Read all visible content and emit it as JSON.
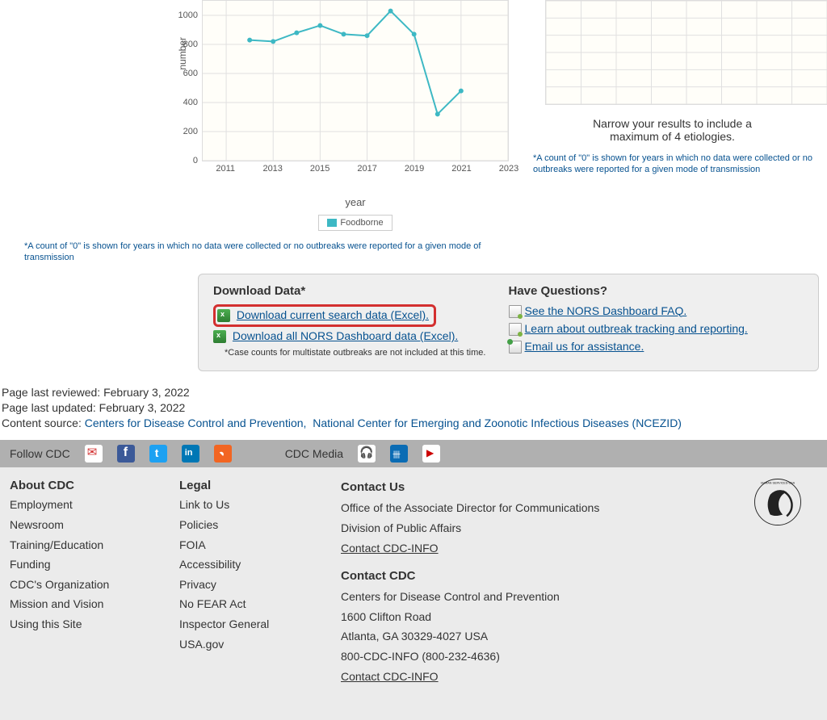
{
  "chart": {
    "y_label": "number",
    "x_label": "year",
    "y_ticks": [
      0,
      200,
      400,
      600,
      800,
      1000
    ],
    "x_ticks": [
      2011,
      2013,
      2015,
      2017,
      2019,
      2021,
      2023
    ],
    "ylim": [
      0,
      1100
    ],
    "xlim": [
      2010,
      2023
    ],
    "legend": "Foodborne",
    "line_color": "#3db8c4",
    "grid_color": "#e0e0e0",
    "background_color": "#fffef9",
    "series": {
      "years": [
        2012,
        2013,
        2014,
        2015,
        2016,
        2017,
        2018,
        2019,
        2020,
        2021
      ],
      "values": [
        830,
        820,
        880,
        930,
        870,
        860,
        1030,
        870,
        320,
        480
      ]
    },
    "footnote_left": "*A count of \"0\" is shown for years in which no data were collected or no outbreaks were reported for a given mode of transmission",
    "footnote_right": "*A count of \"0\" is shown for years in which no data were collected or no outbreaks were reported for a given mode of transmission"
  },
  "narrow_msg_1": "Narrow your results to include a",
  "narrow_msg_2": "maximum of 4 etiologies.",
  "download": {
    "heading": "Download Data*",
    "link1": "Download current search data (Excel).",
    "link2": "Download all NORS Dashboard data (Excel).",
    "note": "*Case counts for multistate outbreaks are not included at this time."
  },
  "questions": {
    "heading": "Have Questions?",
    "link1": "See the NORS Dashboard FAQ.",
    "link2": "Learn about outbreak tracking and reporting.",
    "link3": "Email us for assistance."
  },
  "meta": {
    "reviewed_label": "Page last reviewed: ",
    "reviewed": "February 3, 2022",
    "updated_label": "Page last updated: ",
    "updated": "February 3, 2022",
    "source_label": "Content source:  ",
    "source1": "Centers for Disease Control and Prevention,",
    "source2": "National Center for Emerging and Zoonotic Infectious Diseases (NCEZID)"
  },
  "social": {
    "follow": "Follow CDC",
    "media": "CDC Media"
  },
  "footer": {
    "about": {
      "heading": "About CDC",
      "links": [
        "Employment",
        "Newsroom",
        "Training/Education",
        "Funding",
        "CDC's Organization",
        "Mission and Vision",
        "Using this Site"
      ]
    },
    "legal": {
      "heading": "Legal",
      "links": [
        "Link to Us",
        "Policies",
        "FOIA",
        "Accessibility",
        "Privacy",
        "No FEAR Act",
        "Inspector General",
        "USA.gov"
      ]
    },
    "contact_us": {
      "heading": "Contact Us",
      "line1": "Office of the Associate Director for Communications",
      "line2": "Division of Public Affairs",
      "link": "Contact CDC-INFO"
    },
    "contact_cdc": {
      "heading": "Contact CDC",
      "line1": "Centers for Disease Control and Prevention",
      "line2": "1600 Clifton Road",
      "line3": "Atlanta, GA 30329-4027 USA",
      "line4": "800-CDC-INFO (800-232-4636)",
      "link": "Contact CDC-INFO"
    }
  }
}
